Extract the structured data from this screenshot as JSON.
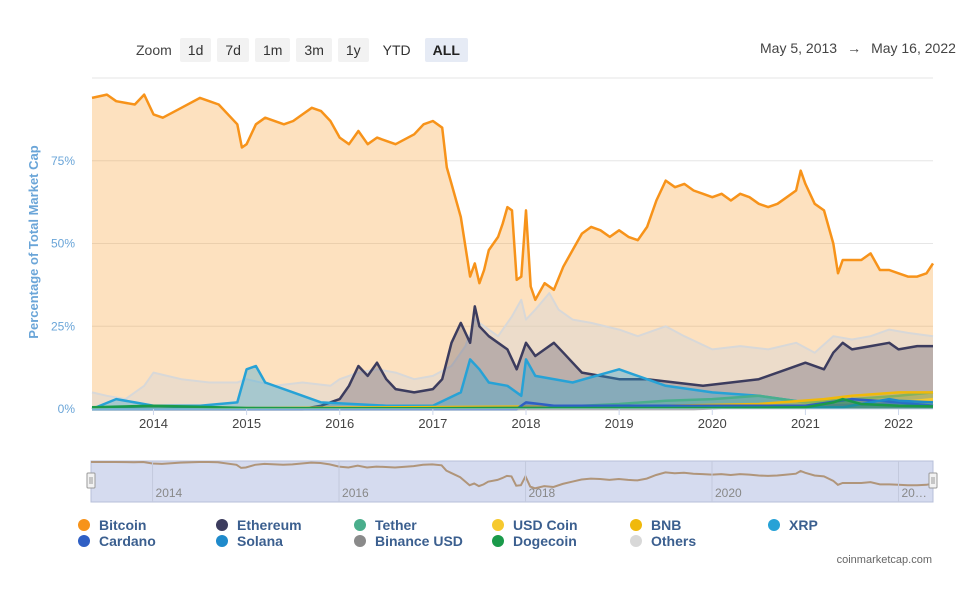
{
  "zoom": {
    "label": "Zoom",
    "buttons": [
      "1d",
      "7d",
      "1m",
      "3m",
      "1y",
      "YTD",
      "ALL"
    ],
    "active": "ALL"
  },
  "date_range": {
    "from": "May 5, 2013",
    "arrow": "→",
    "to": "May 16, 2022"
  },
  "credit": "coinmarketcap.com",
  "chart_data": {
    "type": "area",
    "title": "",
    "xlabel": "",
    "ylabel": "Percentage of Total Market Cap",
    "xlim": [
      2013.34,
      2022.37
    ],
    "ylim": [
      0,
      100
    ],
    "x_ticks": [
      "2014",
      "2015",
      "2016",
      "2017",
      "2018",
      "2019",
      "2020",
      "2021",
      "2022"
    ],
    "y_ticks": [
      "0%",
      "25%",
      "50%",
      "75%"
    ],
    "grid": true,
    "legend_position": "bottom",
    "series": [
      {
        "name": "Bitcoin",
        "color": "#f7931a",
        "x": [
          2013.34,
          2013.5,
          2013.6,
          2013.8,
          2013.9,
          2014.0,
          2014.1,
          2014.3,
          2014.5,
          2014.6,
          2014.7,
          2014.9,
          2014.95,
          2015.0,
          2015.1,
          2015.2,
          2015.4,
          2015.5,
          2015.6,
          2015.7,
          2015.8,
          2015.9,
          2016.0,
          2016.1,
          2016.2,
          2016.3,
          2016.4,
          2016.5,
          2016.6,
          2016.8,
          2016.9,
          2017.0,
          2017.1,
          2017.15,
          2017.2,
          2017.3,
          2017.4,
          2017.45,
          2017.5,
          2017.55,
          2017.6,
          2017.7,
          2017.75,
          2017.8,
          2017.85,
          2017.9,
          2017.95,
          2018.0,
          2018.05,
          2018.1,
          2018.2,
          2018.3,
          2018.4,
          2018.5,
          2018.6,
          2018.7,
          2018.8,
          2018.9,
          2019.0,
          2019.1,
          2019.2,
          2019.3,
          2019.4,
          2019.5,
          2019.6,
          2019.7,
          2019.8,
          2019.9,
          2020.0,
          2020.1,
          2020.2,
          2020.3,
          2020.4,
          2020.5,
          2020.6,
          2020.7,
          2020.8,
          2020.9,
          2020.95,
          2021.0,
          2021.1,
          2021.2,
          2021.3,
          2021.35,
          2021.4,
          2021.5,
          2021.6,
          2021.7,
          2021.8,
          2021.9,
          2022.0,
          2022.1,
          2022.2,
          2022.3,
          2022.37
        ],
        "values": [
          94,
          95,
          93,
          92,
          95,
          89,
          88,
          91,
          94,
          93,
          92,
          86,
          79,
          80,
          86,
          88,
          86,
          87,
          89,
          91,
          90,
          87,
          82,
          80,
          84,
          80,
          82,
          81,
          80,
          83,
          86,
          87,
          85,
          73,
          68,
          58,
          40,
          44,
          38,
          42,
          48,
          52,
          56,
          61,
          60,
          39,
          40,
          60,
          37,
          33,
          38,
          36,
          43,
          48,
          53,
          55,
          54,
          52,
          54,
          52,
          51,
          55,
          63,
          69,
          67,
          68,
          66,
          65,
          64,
          65,
          63,
          65,
          64,
          62,
          61,
          62,
          64,
          66,
          72,
          68,
          62,
          60,
          50,
          41,
          45,
          45,
          45,
          47,
          42,
          42,
          41,
          40,
          40,
          41,
          44
        ]
      },
      {
        "name": "Ethereum",
        "color": "#3c3c5e",
        "x": [
          2013.34,
          2015.6,
          2015.8,
          2016.0,
          2016.1,
          2016.2,
          2016.3,
          2016.4,
          2016.5,
          2016.6,
          2016.8,
          2017.0,
          2017.1,
          2017.2,
          2017.3,
          2017.4,
          2017.45,
          2017.5,
          2017.6,
          2017.7,
          2017.8,
          2017.9,
          2018.0,
          2018.1,
          2018.2,
          2018.3,
          2018.4,
          2018.5,
          2018.6,
          2018.8,
          2019.0,
          2019.3,
          2019.6,
          2019.9,
          2020.2,
          2020.5,
          2020.8,
          2021.0,
          2021.2,
          2021.3,
          2021.4,
          2021.5,
          2021.7,
          2021.9,
          2022.0,
          2022.2,
          2022.37
        ],
        "values": [
          0,
          0,
          1,
          3,
          7,
          13,
          10,
          14,
          9,
          6,
          5,
          6,
          9,
          20,
          26,
          20,
          31,
          25,
          22,
          20,
          18,
          12,
          20,
          16,
          18,
          20,
          17,
          14,
          11,
          10,
          9,
          9,
          8,
          7,
          8,
          9,
          12,
          14,
          12,
          17,
          20,
          18,
          19,
          20,
          18,
          19,
          19
        ]
      },
      {
        "name": "Tether",
        "color": "#4aae8c",
        "x": [
          2013.34,
          2017.9,
          2018.2,
          2018.6,
          2019.0,
          2019.5,
          2020.0,
          2020.5,
          2021.0,
          2021.5,
          2022.0,
          2022.37
        ],
        "values": [
          0,
          0,
          0.5,
          1,
          1.5,
          2.5,
          3,
          4,
          2,
          3,
          4,
          5
        ]
      },
      {
        "name": "USD Coin",
        "color": "#f6c92e",
        "x": [
          2013.34,
          2021.0,
          2021.5,
          2022.0,
          2022.37
        ],
        "values": [
          0,
          0.3,
          1.2,
          2,
          3
        ]
      },
      {
        "name": "BNB",
        "color": "#f0b90b",
        "x": [
          2013.34,
          2019.5,
          2020.5,
          2021.2,
          2021.5,
          2022.0,
          2022.37
        ],
        "values": [
          0,
          1,
          1.5,
          3,
          4,
          5,
          5
        ]
      },
      {
        "name": "XRP",
        "color": "#27a2d6",
        "x": [
          2013.34,
          2013.6,
          2013.8,
          2014.0,
          2014.5,
          2014.9,
          2015.0,
          2015.1,
          2015.2,
          2015.5,
          2015.8,
          2016.5,
          2017.0,
          2017.3,
          2017.4,
          2017.5,
          2017.6,
          2017.8,
          2017.95,
          2018.0,
          2018.1,
          2018.5,
          2019.0,
          2019.5,
          2020.0,
          2020.5,
          2021.0,
          2021.5,
          2022.0,
          2022.37
        ],
        "values": [
          0,
          3,
          2,
          1,
          1,
          2,
          12,
          13,
          8,
          5,
          2,
          1,
          1,
          5,
          15,
          12,
          8,
          7,
          4,
          15,
          10,
          8,
          12,
          7,
          5,
          4,
          2,
          3,
          2,
          2
        ]
      },
      {
        "name": "Cardano",
        "color": "#2f5fc4",
        "x": [
          2013.34,
          2017.9,
          2018.0,
          2018.3,
          2019.0,
          2020.0,
          2021.0,
          2021.5,
          2022.0,
          2022.37
        ],
        "values": [
          0,
          0,
          2,
          1,
          1,
          1,
          1,
          3,
          2,
          1
        ]
      },
      {
        "name": "Solana",
        "color": "#1f8acb",
        "x": [
          2013.34,
          2021.4,
          2021.7,
          2021.9,
          2022.0,
          2022.37
        ],
        "values": [
          0,
          0.5,
          2,
          3,
          2.5,
          2
        ]
      },
      {
        "name": "Binance USD",
        "color": "#8a8a8a",
        "x": [
          2013.34,
          2019.8,
          2020.5,
          2021.0,
          2022.0,
          2022.37
        ],
        "values": [
          0,
          0,
          0.5,
          1,
          1.5,
          1
        ]
      },
      {
        "name": "Dogecoin",
        "color": "#1a9a4a",
        "x": [
          2013.34,
          2014.0,
          2015.0,
          2016.0,
          2017.0,
          2018.0,
          2020.0,
          2021.0,
          2021.3,
          2021.4,
          2021.6,
          2022.0,
          2022.37
        ],
        "values": [
          0.5,
          1,
          0.3,
          0.2,
          0.2,
          0.3,
          0.3,
          0.5,
          2,
          3,
          1.5,
          1,
          0.8
        ]
      },
      {
        "name": "Others",
        "color": "#d8d8d8",
        "x": [
          2013.34,
          2013.5,
          2013.7,
          2013.9,
          2014.0,
          2014.3,
          2014.6,
          2014.9,
          2015.0,
          2015.3,
          2015.6,
          2015.9,
          2016.0,
          2016.2,
          2016.4,
          2016.6,
          2016.8,
          2017.0,
          2017.2,
          2017.35,
          2017.45,
          2017.55,
          2017.7,
          2017.85,
          2017.95,
          2018.0,
          2018.1,
          2018.25,
          2018.35,
          2018.5,
          2018.7,
          2019.0,
          2019.2,
          2019.5,
          2019.7,
          2020.0,
          2020.3,
          2020.6,
          2020.9,
          2021.1,
          2021.3,
          2021.5,
          2021.7,
          2021.9,
          2022.1,
          2022.37
        ],
        "values": [
          5,
          4,
          3,
          7,
          11,
          9,
          8,
          8,
          9,
          7,
          8,
          7,
          9,
          11,
          12,
          11,
          9,
          10,
          13,
          19,
          27,
          25,
          22,
          28,
          33,
          27,
          30,
          35,
          30,
          27,
          26,
          24,
          22,
          25,
          22,
          18,
          19,
          18,
          20,
          17,
          22,
          21,
          22,
          24,
          23,
          22
        ]
      }
    ]
  },
  "navigator": {
    "x_ticks": [
      "2014",
      "2016",
      "2018",
      "2020",
      "20…"
    ]
  },
  "legend": [
    {
      "name": "Bitcoin",
      "color": "#f7931a"
    },
    {
      "name": "Ethereum",
      "color": "#3c3c5e"
    },
    {
      "name": "Tether",
      "color": "#4aae8c"
    },
    {
      "name": "USD Coin",
      "color": "#f6c92e"
    },
    {
      "name": "BNB",
      "color": "#f0b90b"
    },
    {
      "name": "XRP",
      "color": "#27a2d6"
    },
    {
      "name": "Cardano",
      "color": "#2f5fc4"
    },
    {
      "name": "Solana",
      "color": "#1f8acb"
    },
    {
      "name": "Binance USD",
      "color": "#8a8a8a"
    },
    {
      "name": "Dogecoin",
      "color": "#1a9a4a"
    },
    {
      "name": "Others",
      "color": "#d8d8d8"
    }
  ]
}
